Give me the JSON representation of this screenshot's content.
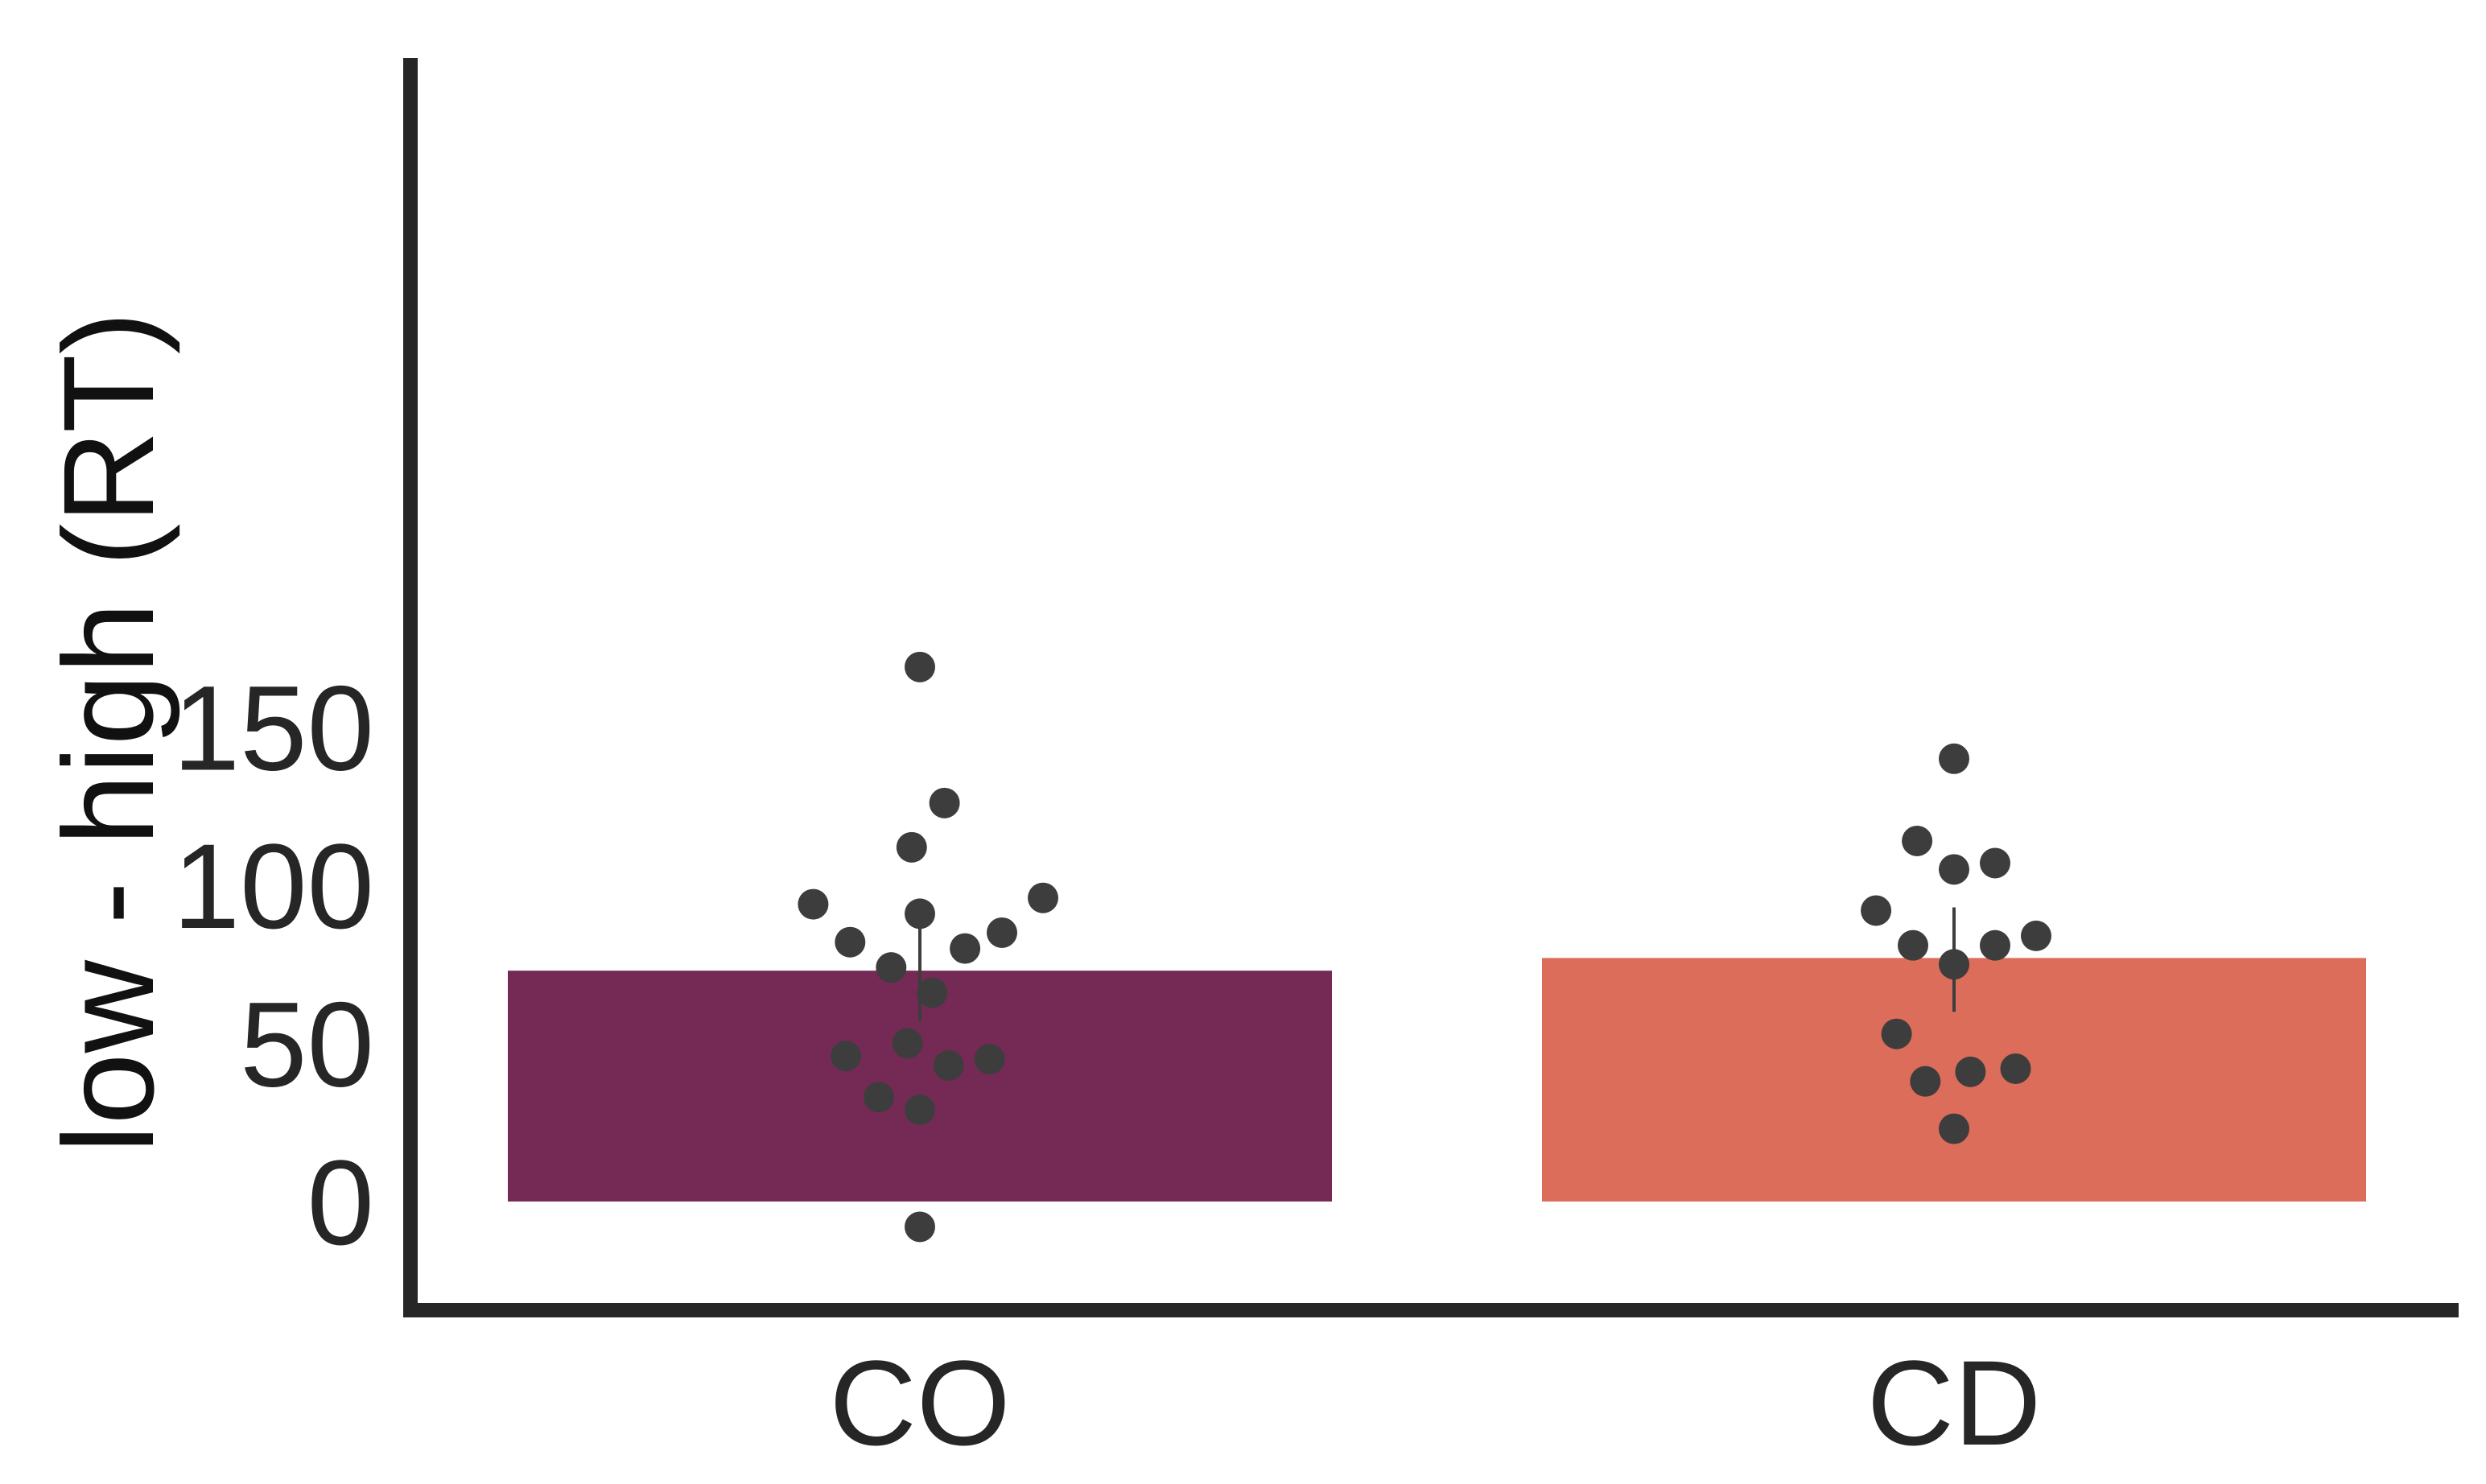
{
  "chart_data": {
    "type": "bar",
    "title": "",
    "xlabel": "",
    "ylabel": "low - high (RT)",
    "categories": [
      "CO",
      "CD"
    ],
    "values": [
      73,
      77
    ],
    "error_bars": [
      {
        "low": 57,
        "high": 89
      },
      {
        "low": 60,
        "high": 93
      }
    ],
    "bar_colors": [
      "#752a56",
      "#db6d5a"
    ],
    "point_color": "#3d3d3d",
    "error_color": "#3d3d3d",
    "axis_color": "#262626",
    "ylim": [
      -18,
      176
    ],
    "yticks": [
      0,
      50,
      100,
      150
    ],
    "grid": false,
    "legend": false,
    "points": [
      [
        {
          "x_offset": 0.0,
          "y": 169
        },
        {
          "x_offset": 0.06,
          "y": 126
        },
        {
          "x_offset": -0.02,
          "y": 112
        },
        {
          "x_offset": -0.26,
          "y": 94
        },
        {
          "x_offset": 0.3,
          "y": 96
        },
        {
          "x_offset": 0.0,
          "y": 91
        },
        {
          "x_offset": -0.17,
          "y": 82
        },
        {
          "x_offset": 0.2,
          "y": 85
        },
        {
          "x_offset": 0.11,
          "y": 80
        },
        {
          "x_offset": -0.07,
          "y": 74
        },
        {
          "x_offset": 0.03,
          "y": 66
        },
        {
          "x_offset": -0.18,
          "y": 46
        },
        {
          "x_offset": -0.03,
          "y": 50
        },
        {
          "x_offset": 0.07,
          "y": 43
        },
        {
          "x_offset": 0.17,
          "y": 45
        },
        {
          "x_offset": -0.1,
          "y": 33
        },
        {
          "x_offset": 0.0,
          "y": 29
        },
        {
          "x_offset": 0.0,
          "y": -8
        }
      ],
      [
        {
          "x_offset": 0.0,
          "y": 140
        },
        {
          "x_offset": -0.09,
          "y": 114
        },
        {
          "x_offset": 0.1,
          "y": 107
        },
        {
          "x_offset": 0.0,
          "y": 105
        },
        {
          "x_offset": -0.19,
          "y": 92
        },
        {
          "x_offset": -0.1,
          "y": 81
        },
        {
          "x_offset": 0.1,
          "y": 81
        },
        {
          "x_offset": 0.2,
          "y": 84
        },
        {
          "x_offset": 0.0,
          "y": 75
        },
        {
          "x_offset": -0.14,
          "y": 53
        },
        {
          "x_offset": -0.07,
          "y": 38
        },
        {
          "x_offset": 0.04,
          "y": 41
        },
        {
          "x_offset": 0.15,
          "y": 42
        },
        {
          "x_offset": 0.0,
          "y": 23
        }
      ]
    ]
  }
}
